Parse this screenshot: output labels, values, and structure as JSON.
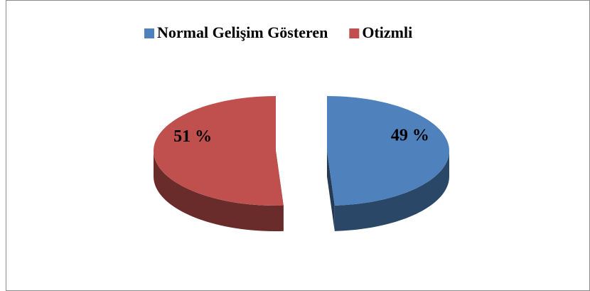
{
  "chart_data": {
    "type": "pie",
    "categories": [
      "Normal Gelişim Gösteren",
      "Otizmli"
    ],
    "values": [
      49,
      51
    ],
    "value_labels": [
      "49 %",
      "51 %"
    ],
    "colors": [
      "#4f81bd",
      "#c0504d"
    ],
    "legend": "top"
  }
}
